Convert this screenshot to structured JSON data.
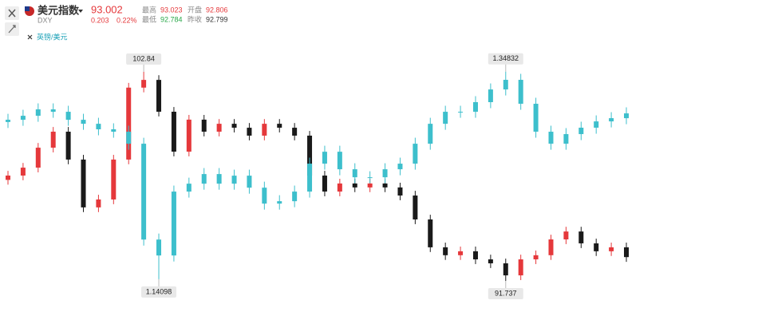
{
  "header": {
    "name": "美元指数",
    "code": "DXY",
    "price": 93.002,
    "change": 0.203,
    "change_pct": "0.22%",
    "stats": [
      {
        "label": "最高",
        "value": 93.023
      },
      {
        "label": "开盘",
        "value": 92.806
      },
      {
        "label": "最低",
        "value": 92.784
      },
      {
        "label": "昨收",
        "value": 92.799
      }
    ]
  },
  "chart_data": {
    "type": "candlestick",
    "series": [
      {
        "up_color": "#e5383b",
        "down_color": "#1a1a1a",
        "ylim": [
          90.55,
          104.11
        ],
        "max_label": 102.84,
        "min_label": 91.737,
        "open": [
          97.1,
          97.33,
          97.75,
          98.81,
          99.66,
          98.18,
          95.64,
          96.06,
          98.18,
          102.0,
          102.41,
          100.72,
          98.6,
          100.3,
          99.66,
          100.08,
          99.87,
          99.45,
          100.08,
          99.87,
          99.45,
          97.33,
          96.48,
          96.91,
          96.7,
          96.91,
          96.7,
          96.27,
          95.0,
          93.52,
          93.1,
          93.31,
          92.88,
          92.67,
          92.03,
          92.88,
          93.1,
          93.94,
          94.36,
          93.73,
          93.31,
          93.52
        ],
        "high": [
          97.58,
          98.0,
          99.06,
          99.91,
          99.91,
          98.43,
          96.31,
          98.43,
          102.25,
          102.84,
          102.66,
          100.97,
          100.55,
          100.55,
          100.33,
          100.33,
          100.12,
          100.33,
          100.33,
          100.12,
          99.7,
          97.58,
          97.16,
          97.16,
          97.16,
          97.16,
          96.95,
          96.52,
          95.25,
          93.77,
          93.56,
          93.56,
          93.13,
          92.92,
          93.13,
          93.35,
          94.19,
          94.61,
          94.61,
          93.98,
          93.77,
          93.77
        ],
        "low": [
          96.85,
          97.08,
          97.5,
          98.56,
          97.93,
          95.39,
          95.39,
          95.81,
          97.93,
          101.75,
          100.47,
          98.35,
          98.35,
          99.41,
          99.41,
          99.62,
          99.2,
          99.2,
          99.62,
          99.2,
          97.08,
          96.23,
          96.23,
          96.45,
          96.45,
          96.45,
          96.02,
          94.75,
          93.27,
          92.85,
          92.85,
          92.63,
          92.42,
          91.737,
          91.78,
          92.63,
          92.85,
          93.69,
          93.48,
          93.06,
          93.06,
          92.75
        ],
        "close": [
          97.33,
          97.75,
          98.81,
          99.66,
          98.18,
          95.64,
          96.06,
          98.18,
          102.0,
          102.41,
          100.72,
          98.6,
          100.3,
          99.66,
          100.08,
          99.87,
          99.45,
          100.08,
          99.87,
          99.45,
          97.33,
          96.48,
          96.91,
          96.7,
          96.91,
          96.7,
          96.27,
          95.0,
          93.52,
          93.1,
          93.31,
          92.88,
          92.67,
          92.03,
          92.88,
          93.1,
          93.94,
          94.36,
          93.73,
          93.31,
          93.52,
          93.0
        ]
      },
      {
        "name": "英镑/美元",
        "up_color": "#3dbfcc",
        "down_color": "#3dbfcc",
        "ylim": [
          1.117,
          1.372
        ],
        "max_label": 1.34832,
        "min_label": 1.14098,
        "open": [
          1.298,
          1.3002,
          1.3042,
          1.3106,
          1.3082,
          1.3002,
          1.2962,
          1.2907,
          1.2883,
          1.2763,
          1.1806,
          1.1647,
          1.2285,
          1.2364,
          1.246,
          1.2364,
          1.2444,
          1.2324,
          1.2165,
          1.2189,
          1.2285,
          1.2564,
          1.2683,
          1.2508,
          1.2428,
          1.2428,
          1.2508,
          1.2564,
          1.2763,
          1.2962,
          1.3082,
          1.3082,
          1.3178,
          1.3305,
          1.3401,
          1.3162,
          1.2883,
          1.2763,
          1.2859,
          1.2923,
          1.2986,
          1.3018
        ],
        "high": [
          1.3062,
          1.3102,
          1.3166,
          1.3166,
          1.3142,
          1.3062,
          1.3022,
          1.2967,
          1.2943,
          1.2823,
          1.1866,
          1.2345,
          1.2424,
          1.252,
          1.252,
          1.2504,
          1.2504,
          1.2384,
          1.2249,
          1.2345,
          1.2624,
          1.2743,
          1.2743,
          1.2568,
          1.2488,
          1.2568,
          1.2624,
          1.2823,
          1.3022,
          1.3142,
          1.3142,
          1.3238,
          1.3365,
          1.34832,
          1.3461,
          1.3222,
          1.2943,
          1.2919,
          1.2983,
          1.3046,
          1.3078,
          1.3126
        ],
        "low": [
          1.292,
          1.2942,
          1.2982,
          1.3022,
          1.2942,
          1.2902,
          1.2847,
          1.2823,
          1.2703,
          1.1746,
          1.14098,
          1.1587,
          1.2225,
          1.2304,
          1.2304,
          1.2304,
          1.2264,
          1.2105,
          1.2105,
          1.2129,
          1.2225,
          1.2504,
          1.2448,
          1.2368,
          1.2368,
          1.2368,
          1.2448,
          1.2504,
          1.2703,
          1.2902,
          1.3022,
          1.3022,
          1.3118,
          1.3245,
          1.3102,
          1.2823,
          1.2703,
          1.2703,
          1.2799,
          1.2863,
          1.2926,
          1.2958
        ],
        "close": [
          1.3002,
          1.3042,
          1.3106,
          1.3082,
          1.3002,
          1.2962,
          1.2907,
          1.2883,
          1.2763,
          1.1806,
          1.1647,
          1.2285,
          1.2364,
          1.246,
          1.2364,
          1.2444,
          1.2324,
          1.2165,
          1.2189,
          1.2285,
          1.2564,
          1.2683,
          1.2508,
          1.2428,
          1.2428,
          1.2508,
          1.2564,
          1.2763,
          1.2962,
          1.3082,
          1.3082,
          1.3178,
          1.3305,
          1.3401,
          1.3162,
          1.2883,
          1.2763,
          1.2859,
          1.2923,
          1.2986,
          1.3018,
          1.3066
        ]
      }
    ]
  }
}
